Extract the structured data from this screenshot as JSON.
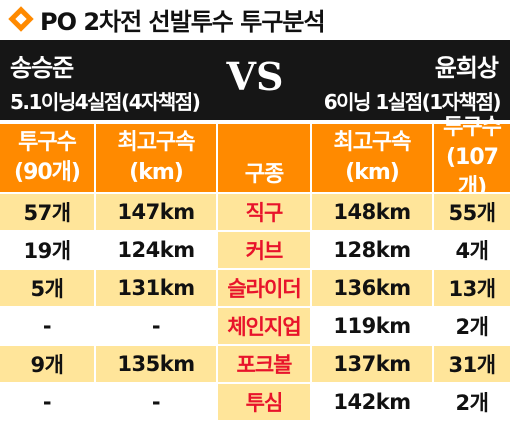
{
  "title": "PO 2차전 선발투수 투구분석",
  "left_player": {
    "name": "송승준",
    "stat": "5.1이닝4실점(4자책점)"
  },
  "vs": "VS",
  "right_player": {
    "name": "윤희상",
    "stat": "6이닝 1실점(1자책점)"
  },
  "columns": {
    "left_count": [
      "투구수",
      "(90개)"
    ],
    "left_speed": [
      "최고구속",
      "(km)"
    ],
    "pitch": [
      "구종"
    ],
    "right_speed": [
      "최고구속",
      "(km)"
    ],
    "right_count": [
      "투구수",
      "(107개)"
    ]
  },
  "rows": [
    {
      "left_count": "57개",
      "left_speed": "147km",
      "pitch": "직구",
      "right_speed": "148km",
      "right_count": "55개"
    },
    {
      "left_count": "19개",
      "left_speed": "124km",
      "pitch": "커브",
      "right_speed": "128km",
      "right_count": "4개"
    },
    {
      "left_count": "5개",
      "left_speed": "131km",
      "pitch": "슬라이더",
      "right_speed": "136km",
      "right_count": "13개"
    },
    {
      "left_count": "-",
      "left_speed": "-",
      "pitch": "체인지업",
      "right_speed": "119km",
      "right_count": "2개"
    },
    {
      "left_count": "9개",
      "left_speed": "135km",
      "pitch": "포크볼",
      "right_speed": "137km",
      "right_count": "31개"
    },
    {
      "left_count": "-",
      "left_speed": "-",
      "pitch": "투심",
      "right_speed": "142km",
      "right_count": "2개"
    }
  ],
  "colors": {
    "accent": "#ff8a00",
    "header_bg": "#161616",
    "row_highlight": "#ffe59a",
    "pitch_text": "#e8132b"
  }
}
